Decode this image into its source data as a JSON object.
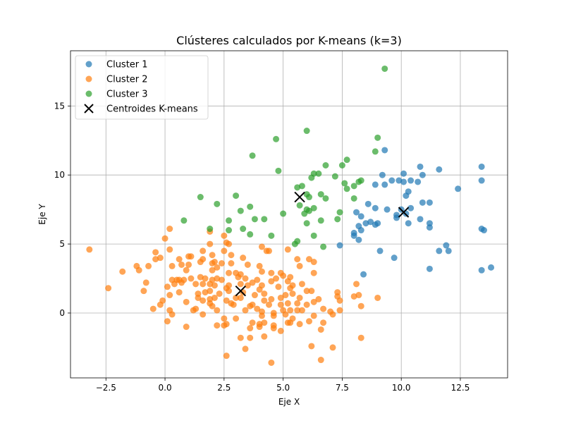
{
  "chart_data": {
    "type": "scatter",
    "title": "Clústeres calculados por K-means (k=3)",
    "xlabel": "Eje X",
    "ylabel": "Eje Y",
    "xlim": [
      -4.0,
      14.5
    ],
    "ylim": [
      -4.7,
      19.0
    ],
    "xticks": [
      -2.5,
      0.0,
      2.5,
      5.0,
      7.5,
      10.0,
      12.5
    ],
    "xtick_labels": [
      "−2.5",
      "0.0",
      "2.5",
      "5.0",
      "7.5",
      "10.0",
      "12.5"
    ],
    "yticks": [
      0,
      5,
      10,
      15
    ],
    "ytick_labels": [
      "0",
      "5",
      "10",
      "15"
    ],
    "grid": true,
    "legend_position": "top-left",
    "series": [
      {
        "name": "Cluster 1",
        "color": "#1f77b4",
        "marker": "circle",
        "points": [
          [
            9.3,
            11.8
          ],
          [
            10.8,
            10.6
          ],
          [
            11.6,
            10.4
          ],
          [
            13.4,
            10.6
          ],
          [
            13.4,
            9.6
          ],
          [
            12.4,
            9.0
          ],
          [
            10.1,
            10.1
          ],
          [
            9.2,
            10.0
          ],
          [
            9.9,
            9.6
          ],
          [
            10.1,
            9.5
          ],
          [
            10.4,
            9.6
          ],
          [
            10.7,
            9.5
          ],
          [
            10.9,
            10.0
          ],
          [
            9.6,
            9.6
          ],
          [
            9.3,
            9.3
          ],
          [
            8.9,
            9.3
          ],
          [
            10.3,
            8.8
          ],
          [
            10.2,
            8.5
          ],
          [
            10.9,
            8.0
          ],
          [
            11.2,
            8.0
          ],
          [
            8.6,
            7.9
          ],
          [
            8.9,
            7.6
          ],
          [
            10.0,
            7.5
          ],
          [
            10.4,
            7.6
          ],
          [
            9.4,
            7.5
          ],
          [
            9.8,
            7.1
          ],
          [
            8.1,
            7.3
          ],
          [
            8.3,
            7.0
          ],
          [
            9.8,
            6.9
          ],
          [
            10.2,
            7.2
          ],
          [
            10.8,
            6.8
          ],
          [
            11.2,
            6.5
          ],
          [
            8.5,
            6.5
          ],
          [
            8.7,
            6.6
          ],
          [
            8.9,
            6.4
          ],
          [
            9.0,
            6.5
          ],
          [
            8.2,
            6.3
          ],
          [
            8.3,
            6.0
          ],
          [
            10.3,
            6.5
          ],
          [
            11.2,
            6.2
          ],
          [
            13.4,
            6.1
          ],
          [
            13.5,
            6.0
          ],
          [
            8.0,
            5.8
          ],
          [
            8.0,
            5.6
          ],
          [
            8.2,
            5.3
          ],
          [
            7.4,
            4.9
          ],
          [
            9.1,
            4.5
          ],
          [
            11.9,
            4.9
          ],
          [
            12.0,
            4.5
          ],
          [
            11.6,
            4.5
          ],
          [
            9.7,
            4.0
          ],
          [
            11.2,
            3.2
          ],
          [
            13.4,
            3.1
          ],
          [
            13.8,
            3.3
          ],
          [
            8.4,
            2.8
          ]
        ]
      },
      {
        "name": "Cluster 2",
        "color": "#ff7f0e",
        "marker": "circle",
        "points": [
          [
            -3.2,
            4.6
          ],
          [
            0.2,
            6.1
          ],
          [
            1.9,
            5.9
          ],
          [
            2.5,
            5.6
          ],
          [
            0.0,
            5.4
          ],
          [
            2.6,
            5.1
          ],
          [
            1.9,
            5.0
          ],
          [
            2.7,
            5.0
          ],
          [
            4.1,
            4.8
          ],
          [
            4.4,
            4.5
          ],
          [
            5.2,
            4.6
          ],
          [
            4.3,
            4.5
          ],
          [
            -0.4,
            4.4
          ],
          [
            0.2,
            4.6
          ],
          [
            1.6,
            4.5
          ],
          [
            2.5,
            4.5
          ],
          [
            3.3,
            4.0
          ],
          [
            -0.2,
            4.0
          ],
          [
            -0.4,
            3.9
          ],
          [
            0.6,
            3.9
          ],
          [
            1.0,
            4.1
          ],
          [
            1.1,
            4.1
          ],
          [
            2.0,
            4.2
          ],
          [
            2.8,
            4.2
          ],
          [
            5.6,
            3.9
          ],
          [
            6.1,
            3.9
          ],
          [
            6.3,
            3.7
          ],
          [
            -1.2,
            3.4
          ],
          [
            -0.7,
            3.4
          ],
          [
            0.3,
            3.4
          ],
          [
            0.7,
            3.5
          ],
          [
            1.0,
            3.5
          ],
          [
            1.6,
            3.9
          ],
          [
            1.5,
            3.7
          ],
          [
            2.1,
            3.7
          ],
          [
            2.0,
            3.6
          ],
          [
            2.4,
            3.6
          ],
          [
            2.8,
            3.6
          ],
          [
            3.5,
            3.5
          ],
          [
            4.0,
            3.4
          ],
          [
            5.7,
            3.4
          ],
          [
            -1.1,
            3.1
          ],
          [
            -1.8,
            3.0
          ],
          [
            0.9,
            3.1
          ],
          [
            2.0,
            3.1
          ],
          [
            2.2,
            3.3
          ],
          [
            2.7,
            2.9
          ],
          [
            3.0,
            2.9
          ],
          [
            3.2,
            2.8
          ],
          [
            3.1,
            2.6
          ],
          [
            4.1,
            3.0
          ],
          [
            4.5,
            2.9
          ],
          [
            4.9,
            2.9
          ],
          [
            5.0,
            2.7
          ],
          [
            5.3,
            2.6
          ],
          [
            6.3,
            2.9
          ],
          [
            0.3,
            2.4
          ],
          [
            0.5,
            2.4
          ],
          [
            0.6,
            2.4
          ],
          [
            0.8,
            2.4
          ],
          [
            1.1,
            2.5
          ],
          [
            1.5,
            2.6
          ],
          [
            1.7,
            2.5
          ],
          [
            2.0,
            2.4
          ],
          [
            2.2,
            2.5
          ],
          [
            2.4,
            2.4
          ],
          [
            3.4,
            2.5
          ],
          [
            3.7,
            2.2
          ],
          [
            3.9,
            2.4
          ],
          [
            4.1,
            2.0
          ],
          [
            4.5,
            2.3
          ],
          [
            4.7,
            2.5
          ],
          [
            5.2,
            2.3
          ],
          [
            5.4,
            2.0
          ],
          [
            5.8,
            2.1
          ],
          [
            8.1,
            2.1
          ],
          [
            -2.4,
            1.8
          ],
          [
            -0.8,
            2.2
          ],
          [
            0.1,
            1.9
          ],
          [
            0.4,
            2.1
          ],
          [
            0.7,
            2.2
          ],
          [
            1.3,
            2.1
          ],
          [
            1.6,
            2.1
          ],
          [
            1.9,
            2.1
          ],
          [
            2.1,
            2.0
          ],
          [
            2.7,
            2.0
          ],
          [
            3.2,
            2.1
          ],
          [
            3.5,
            2.0
          ],
          [
            4.0,
            1.7
          ],
          [
            4.8,
            1.9
          ],
          [
            5.3,
            1.8
          ],
          [
            6.0,
            1.6
          ],
          [
            6.2,
            1.6
          ],
          [
            7.3,
            1.5
          ],
          [
            -0.9,
            1.6
          ],
          [
            0.2,
            1.3
          ],
          [
            0.6,
            1.5
          ],
          [
            1.4,
            1.4
          ],
          [
            1.7,
            1.5
          ],
          [
            1.9,
            1.6
          ],
          [
            2.3,
            1.4
          ],
          [
            2.6,
            1.8
          ],
          [
            2.7,
            1.6
          ],
          [
            3.3,
            1.5
          ],
          [
            3.8,
            1.3
          ],
          [
            4.2,
            1.4
          ],
          [
            5.1,
            1.3
          ],
          [
            5.4,
            1.4
          ],
          [
            7.3,
            1.2
          ],
          [
            8.0,
            1.2
          ],
          [
            8.2,
            1.3
          ],
          [
            9.0,
            1.1
          ],
          [
            -0.1,
            0.9
          ],
          [
            1.4,
            1.1
          ],
          [
            1.6,
            0.9
          ],
          [
            1.9,
            1.0
          ],
          [
            2.1,
            1.1
          ],
          [
            2.6,
            0.9
          ],
          [
            3.0,
            1.1
          ],
          [
            3.2,
            1.1
          ],
          [
            4.2,
            0.9
          ],
          [
            4.5,
            1.0
          ],
          [
            4.9,
            1.1
          ],
          [
            5.7,
            1.1
          ],
          [
            6.5,
            1.0
          ],
          [
            0.9,
            0.8
          ],
          [
            1.9,
            0.7
          ],
          [
            2.0,
            0.5
          ],
          [
            2.8,
            0.7
          ],
          [
            2.9,
            0.6
          ],
          [
            3.6,
            0.5
          ],
          [
            3.7,
            0.6
          ],
          [
            4.4,
            0.6
          ],
          [
            4.9,
            0.6
          ],
          [
            5.2,
            0.7
          ],
          [
            5.6,
            0.7
          ],
          [
            6.0,
            0.6
          ],
          [
            6.3,
            0.8
          ],
          [
            7.4,
            0.9
          ],
          [
            -0.5,
            0.3
          ],
          [
            -0.2,
            0.6
          ],
          [
            0.2,
            0.2
          ],
          [
            1.2,
            0.2
          ],
          [
            1.3,
            0.3
          ],
          [
            2.2,
            0.2
          ],
          [
            3.4,
            0.2
          ],
          [
            3.9,
            0.3
          ],
          [
            4.1,
            0.1
          ],
          [
            4.6,
            0.0
          ],
          [
            5.0,
            0.2
          ],
          [
            5.3,
            0.2
          ],
          [
            5.6,
            0.2
          ],
          [
            5.8,
            0.2
          ],
          [
            6.7,
            0.3
          ],
          [
            7.0,
            0.1
          ],
          [
            7.4,
            0.2
          ],
          [
            8.3,
            0.5
          ],
          [
            0.3,
            -0.1
          ],
          [
            0.1,
            -0.6
          ],
          [
            1.6,
            -0.1
          ],
          [
            2.5,
            -0.4
          ],
          [
            3.0,
            -0.4
          ],
          [
            4.1,
            -0.2
          ],
          [
            4.6,
            -0.2
          ],
          [
            5.1,
            -0.1
          ],
          [
            5.4,
            -0.4
          ],
          [
            6.3,
            -0.2
          ],
          [
            7.1,
            -0.1
          ],
          [
            3.7,
            -0.7
          ],
          [
            4.0,
            -0.8
          ],
          [
            4.2,
            -0.7
          ],
          [
            5.2,
            -0.7
          ],
          [
            5.7,
            -0.8
          ],
          [
            6.1,
            -0.6
          ],
          [
            6.7,
            -0.7
          ],
          [
            0.9,
            -1.0
          ],
          [
            2.2,
            -0.9
          ],
          [
            2.5,
            -0.9
          ],
          [
            2.6,
            -0.8
          ],
          [
            3.6,
            -1.1
          ],
          [
            4.0,
            -1.0
          ],
          [
            4.6,
            -0.9
          ],
          [
            4.6,
            -1.1
          ],
          [
            4.9,
            -1.3
          ],
          [
            5.3,
            -0.7
          ],
          [
            6.6,
            -1.2
          ],
          [
            3.2,
            -1.8
          ],
          [
            3.6,
            -1.8
          ],
          [
            4.2,
            -1.7
          ],
          [
            8.3,
            -1.8
          ],
          [
            3.4,
            -2.6
          ],
          [
            6.2,
            -2.4
          ],
          [
            7.1,
            -2.5
          ],
          [
            2.6,
            -3.1
          ],
          [
            4.5,
            -3.6
          ],
          [
            6.6,
            -3.4
          ]
        ]
      },
      {
        "name": "Cluster 3",
        "color": "#2ca02c",
        "marker": "circle",
        "points": [
          [
            9.3,
            17.7
          ],
          [
            6.0,
            13.2
          ],
          [
            4.7,
            12.6
          ],
          [
            9.0,
            12.7
          ],
          [
            3.7,
            11.4
          ],
          [
            7.7,
            11.1
          ],
          [
            8.9,
            11.7
          ],
          [
            4.8,
            10.3
          ],
          [
            6.5,
            10.1
          ],
          [
            6.3,
            10.1
          ],
          [
            7.2,
            9.9
          ],
          [
            6.8,
            10.7
          ],
          [
            7.5,
            10.7
          ],
          [
            6.2,
            9.8
          ],
          [
            8.2,
            9.5
          ],
          [
            8.3,
            9.6
          ],
          [
            7.6,
            9.4
          ],
          [
            7.7,
            9.0
          ],
          [
            8.0,
            9.2
          ],
          [
            5.8,
            9.2
          ],
          [
            5.6,
            9.1
          ],
          [
            6.1,
            8.4
          ],
          [
            6.0,
            8.6
          ],
          [
            6.6,
            8.6
          ],
          [
            6.8,
            8.3
          ],
          [
            1.5,
            8.4
          ],
          [
            3.0,
            8.5
          ],
          [
            8.0,
            8.3
          ],
          [
            2.2,
            7.9
          ],
          [
            3.6,
            7.7
          ],
          [
            5.7,
            7.8
          ],
          [
            6.0,
            7.5
          ],
          [
            6.3,
            7.6
          ],
          [
            6.1,
            7.4
          ],
          [
            3.2,
            7.4
          ],
          [
            5.9,
            7.2
          ],
          [
            5.0,
            7.2
          ],
          [
            7.4,
            7.3
          ],
          [
            0.8,
            6.7
          ],
          [
            2.7,
            6.7
          ],
          [
            3.8,
            6.8
          ],
          [
            4.2,
            6.8
          ],
          [
            6.0,
            6.5
          ],
          [
            6.6,
            6.7
          ],
          [
            7.3,
            6.8
          ],
          [
            1.9,
            6.1
          ],
          [
            2.7,
            6.0
          ],
          [
            3.3,
            6.1
          ],
          [
            3.6,
            5.7
          ],
          [
            4.5,
            5.6
          ],
          [
            6.3,
            5.6
          ],
          [
            5.6,
            5.2
          ],
          [
            5.5,
            5.0
          ],
          [
            6.7,
            4.8
          ]
        ]
      },
      {
        "name": "Centroides K-means",
        "color": "#000000",
        "marker": "x",
        "points": [
          [
            5.7,
            8.4
          ],
          [
            10.1,
            7.3
          ],
          [
            3.2,
            1.6
          ]
        ]
      }
    ]
  }
}
